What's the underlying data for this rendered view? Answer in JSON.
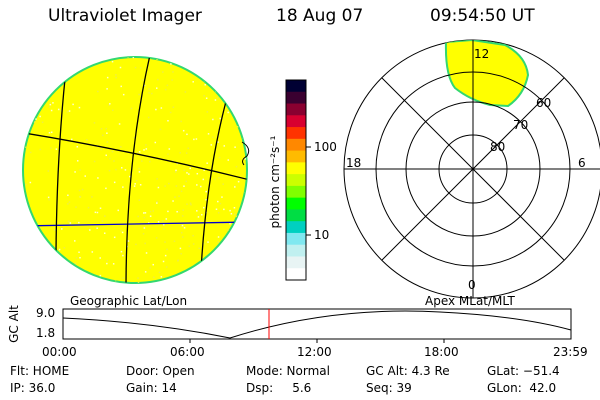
{
  "header": {
    "instrument": "Ultraviolet Imager",
    "date": "18 Aug 07",
    "time": "09:54:50 UT"
  },
  "colorbar": {
    "unit_label": "photon cm⁻²s⁻¹",
    "ticks": [
      "100",
      "10"
    ],
    "colors": [
      "#000033",
      "#3a0030",
      "#8a0030",
      "#d80030",
      "#ff3300",
      "#ff8800",
      "#ffbb00",
      "#ffff00",
      "#ccff00",
      "#80ff00",
      "#00ff00",
      "#00dd44",
      "#00d0c0",
      "#80e8f0",
      "#c0f0f0",
      "#e8f4f4",
      "#ffffff"
    ]
  },
  "left_panel": {
    "label": "Geographic Lat/Lon",
    "disk_fill": "#ffff00",
    "disk_rim": "#33d870"
  },
  "right_panel": {
    "label": "Apex MLat/MLT",
    "mlt_labels": {
      "top": "12",
      "left": "18",
      "right": "6",
      "bottom": "0"
    },
    "mlat_labels": [
      "60",
      "70",
      "80"
    ]
  },
  "altitude_plot": {
    "ylabel": "GC Alt",
    "yticks": [
      "9.0",
      "1.8"
    ],
    "xticks": [
      "00:00",
      "06:00",
      "12:00",
      "18:00",
      "23:59"
    ],
    "current_time_color": "#ff0000"
  },
  "status": {
    "flt": "Flt: HOME",
    "ip": "IP: 36.0",
    "door": "Door: Open",
    "gain": "Gain: 14",
    "mode": "Mode: Normal",
    "dsp": "Dsp:     5.6",
    "gc_alt": "GC Alt: 4.3 Re",
    "seq": "Seq: 39",
    "glat": "GLat: −51.4",
    "glon": "GLon:  42.0"
  }
}
